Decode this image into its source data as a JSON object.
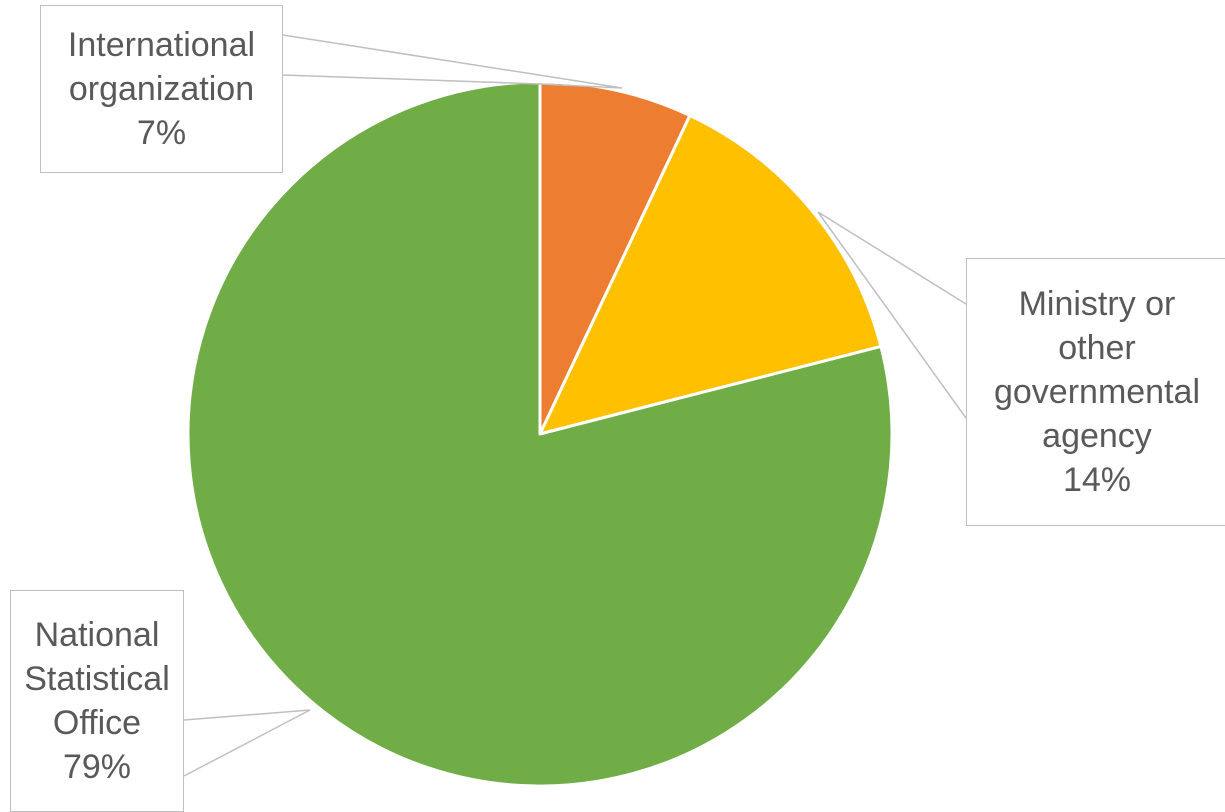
{
  "chart_data": {
    "type": "pie",
    "title": "",
    "slices": [
      {
        "label": "International organization",
        "value": 7,
        "value_label": "7%",
        "color": "#ED7D31"
      },
      {
        "label": "Ministry or other governmental agency",
        "value": 14,
        "value_label": "14%",
        "color": "#FFC000"
      },
      {
        "label": "National Statistical Office",
        "value": 79,
        "value_label": "79%",
        "color": "#70AD47"
      }
    ],
    "start_angle": "12 o'clock, clockwise",
    "legend": "none (data callout labels)"
  },
  "labels": {
    "intl": {
      "line1": "International",
      "line2": "organization",
      "pct": "7%"
    },
    "ministry": {
      "line1": "Ministry or",
      "line2": "other",
      "line3": "governmental",
      "line4": "agency",
      "pct": "14%"
    },
    "nso": {
      "line1": "National",
      "line2": "Statistical",
      "line3": "Office",
      "pct": "79%"
    }
  }
}
